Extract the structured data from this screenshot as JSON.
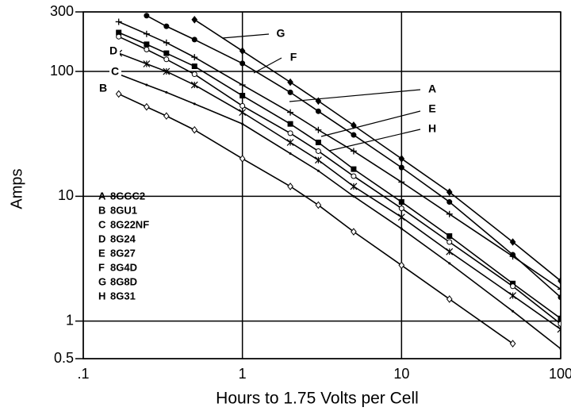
{
  "chart_data": {
    "type": "line",
    "x_label": "Hours to 1.75 Volts per Cell",
    "y_label": "Amps",
    "log_x": true,
    "log_y": true,
    "grid": true,
    "color": "#000000",
    "x": [
      0.167,
      0.25,
      0.333,
      0.5,
      1,
      2,
      3,
      5,
      10,
      20,
      50,
      100
    ],
    "xlim": [
      0.1,
      100
    ],
    "xticks": [
      {
        "value": 0.1,
        "label": ".1"
      },
      1,
      10,
      100
    ],
    "ylim": [
      0.5,
      300
    ],
    "yticks": [
      0.5,
      1,
      10,
      100,
      300
    ],
    "series": [
      {
        "label": "A",
        "name": "8GGC2",
        "marker": "plus",
        "color": "#000000",
        "values": [
          250,
          200,
          170,
          130,
          78,
          47,
          34,
          23,
          13,
          7.2,
          3.3,
          1.8
        ]
      },
      {
        "label": "B",
        "name": "8GU1",
        "marker": "diamond-open",
        "color": "#000000",
        "values": [
          66,
          52,
          44,
          34,
          20,
          12,
          8.5,
          5.2,
          2.8,
          1.5,
          0.66,
          null
        ]
      },
      {
        "label": "C",
        "name": "8G22NF",
        "marker": "dot",
        "color": "#000000",
        "values": [
          95,
          78,
          68,
          55,
          38,
          22,
          16,
          10,
          5.5,
          2.9,
          1.2,
          0.6
        ]
      },
      {
        "label": "D",
        "name": "8G24",
        "marker": "square",
        "color": "#000000",
        "values": [
          205,
          165,
          140,
          110,
          64,
          38,
          27,
          16.5,
          9,
          4.8,
          2.0,
          1.05
        ]
      },
      {
        "label": "E",
        "name": "8G27",
        "marker": "circle-open",
        "color": "#000000",
        "values": [
          190,
          150,
          125,
          95,
          53,
          32,
          23,
          14.5,
          8,
          4.3,
          1.9,
          0.95
        ]
      },
      {
        "label": "F",
        "name": "8G4D",
        "marker": "circle",
        "color": "#000000",
        "values": [
          null,
          280,
          230,
          180,
          116,
          68,
          48,
          31,
          17,
          9,
          3.4,
          1.55
        ]
      },
      {
        "label": "G",
        "name": "8G8D",
        "marker": "diamond",
        "color": "#000000",
        "values": [
          null,
          null,
          null,
          260,
          146,
          82,
          58,
          37,
          20,
          10.8,
          4.3,
          2.1
        ]
      },
      {
        "label": "H",
        "name": "8G31",
        "marker": "asterisk",
        "color": "#000000",
        "values": [
          140,
          115,
          100,
          78,
          47,
          27,
          19.5,
          12,
          6.8,
          3.6,
          1.6,
          0.86
        ]
      }
    ]
  }
}
